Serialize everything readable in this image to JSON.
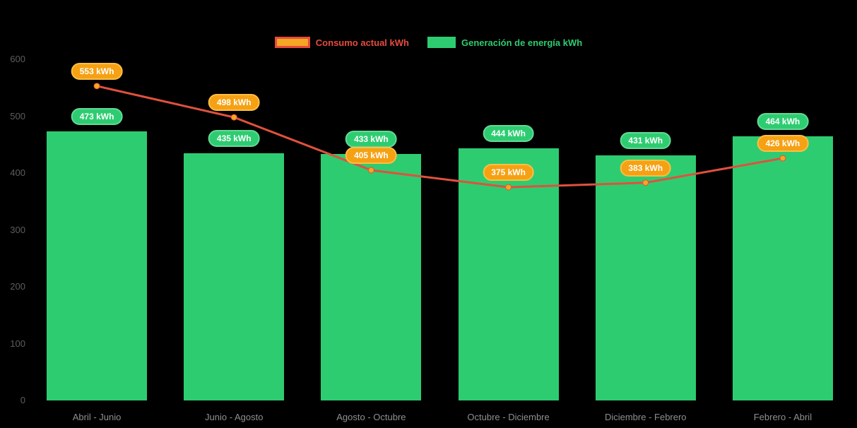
{
  "legend": {
    "items": [
      {
        "label": "Consumo actual kWh",
        "label_color": "#e74c3c",
        "swatch_fill": "#f5a623",
        "swatch_border": "#e74c3c",
        "type": "line"
      },
      {
        "label": "Generación de energía kWh",
        "label_color": "#2ecc71",
        "swatch_fill": "#2ecc71",
        "type": "bar"
      }
    ]
  },
  "chart_data": {
    "type": "bar",
    "subtype": "bar-with-line-overlay",
    "title": "",
    "xlabel": "",
    "ylabel": "",
    "unit": "kWh",
    "value_suffix": " kWh",
    "categories": [
      "Abril - Junio",
      "Junio - Agosto",
      "Agosto - Octubre",
      "Octubre - Diciembre",
      "Diciembre - Febrero",
      "Febrero - Abril"
    ],
    "series": [
      {
        "name": "Consumo actual kWh",
        "type": "line",
        "color": "#e0513e",
        "point_color": "#f5a623",
        "values": [
          553,
          498,
          405,
          375,
          383,
          426
        ],
        "data_labels": [
          "553 kWh",
          "498 kWh",
          "405 kWh",
          "375 kWh",
          "383 kWh",
          "426 kWh"
        ],
        "badge_bg": "#f5a113",
        "badge_border": "#fbbf45"
      },
      {
        "name": "Generación de energía kWh",
        "type": "bar",
        "color": "#2ecc71",
        "values": [
          473,
          435,
          433,
          444,
          431,
          464
        ],
        "data_labels": [
          "473 kWh",
          "435 kWh",
          "433 kWh",
          "444 kWh",
          "431 kWh",
          "464 kWh"
        ],
        "badge_bg": "#2ecc71",
        "badge_border": "#63da97"
      }
    ],
    "ylim": [
      0,
      600
    ],
    "yticks": [
      0,
      100,
      200,
      300,
      400,
      500,
      600
    ],
    "grid": false,
    "legend_position": "top"
  },
  "colors": {
    "background": "#000000",
    "y_axis_label": "#5d5d5d",
    "x_axis_label": "#8f8f8f",
    "badge_text": "#ffffff"
  }
}
